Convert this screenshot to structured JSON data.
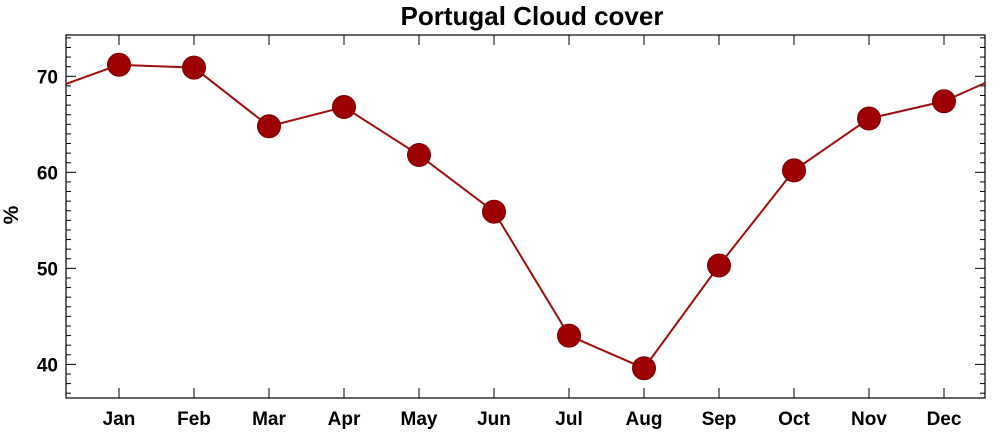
{
  "chart_data": {
    "type": "line",
    "title": "Portugal Cloud cover",
    "xlabel": "",
    "ylabel": "%",
    "categories": [
      "Jan",
      "Feb",
      "Mar",
      "Apr",
      "May",
      "Jun",
      "Jul",
      "Aug",
      "Sep",
      "Oct",
      "Nov",
      "Dec"
    ],
    "series": [
      {
        "values": [
          71.2,
          70.9,
          64.8,
          66.8,
          61.8,
          55.9,
          43.0,
          39.6,
          50.3,
          60.2,
          65.6,
          67.4
        ]
      }
    ],
    "wrap_start_value": 69.2,
    "wrap_end_value": 69.3,
    "yticks": [
      40,
      50,
      60,
      70
    ],
    "ylim": [
      36.5,
      74.3
    ],
    "grid": false,
    "legend": "none",
    "colors": {
      "line": "#9c1010",
      "marker": "#9c0000",
      "marker_stroke": "#7a0000",
      "axis": "#000000"
    }
  }
}
